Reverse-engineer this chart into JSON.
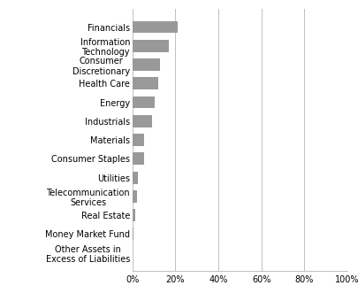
{
  "categories": [
    "Other Assets in\nExcess of Liabilities",
    "Money Market Fund",
    "Real Estate",
    "Telecommunication\nServices",
    "Utilities",
    "Consumer Staples",
    "Materials",
    "Industrials",
    "Energy",
    "Health Care",
    "Consumer\nDiscretionary",
    "Information\nTechnology",
    "Financials"
  ],
  "values": [
    0.0,
    0.3,
    1.5,
    2.0,
    2.5,
    5.5,
    5.5,
    9.0,
    10.5,
    12.0,
    13.0,
    17.0,
    21.0
  ],
  "bar_color": "#999999",
  "xlim": [
    0,
    100
  ],
  "xticks": [
    0,
    20,
    40,
    60,
    80,
    100
  ],
  "background_color": "#ffffff",
  "bar_height": 0.65,
  "grid_color": "#c0c0c0",
  "label_fontsize": 7.0,
  "tick_fontsize": 7.0
}
